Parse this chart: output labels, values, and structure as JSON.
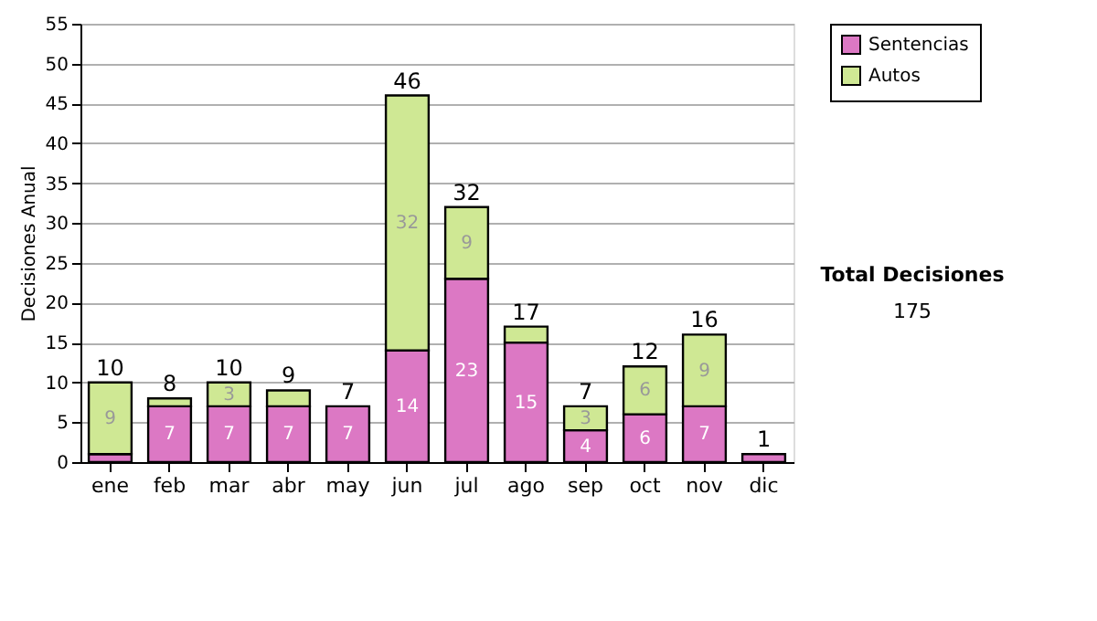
{
  "chart_data": {
    "type": "bar",
    "stacked": true,
    "ylabel": "Decisiones Anual",
    "categories": [
      "ene",
      "feb",
      "mar",
      "abr",
      "may",
      "jun",
      "jul",
      "ago",
      "sep",
      "oct",
      "nov",
      "dic"
    ],
    "series": [
      {
        "name": "Sentencias",
        "color": "#dc78c4",
        "values": [
          1,
          7,
          7,
          7,
          7,
          14,
          23,
          15,
          4,
          6,
          7,
          1
        ],
        "value_labels": [
          null,
          "7",
          "7",
          "7",
          "7",
          "14",
          "23",
          "15",
          "4",
          "6",
          "7",
          null
        ]
      },
      {
        "name": "Autos",
        "color": "#cfe894",
        "values": [
          9,
          1,
          3,
          2,
          null,
          32,
          9,
          2,
          3,
          6,
          9,
          null
        ],
        "value_labels": [
          "9",
          null,
          "3",
          null,
          null,
          "32",
          "9",
          null,
          "3",
          "6",
          "9",
          null
        ]
      }
    ],
    "totals": [
      "10",
      "8",
      "10",
      "9",
      "7",
      "46",
      "32",
      "17",
      "7",
      "12",
      "16",
      "1"
    ],
    "ylim": [
      0,
      55
    ],
    "yticks": [
      0,
      5,
      10,
      15,
      20,
      25,
      30,
      35,
      40,
      45,
      50,
      55
    ],
    "grid": "y",
    "legend": "right",
    "annotations": [
      "Total Decisiones",
      "175"
    ]
  }
}
